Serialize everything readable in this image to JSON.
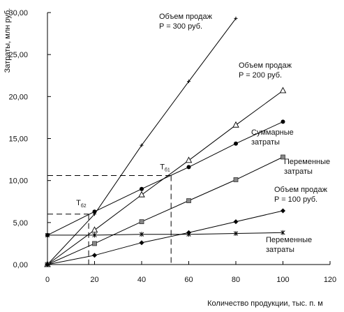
{
  "chart_data": {
    "type": "line",
    "xlabel": "Количество продукции, тыс. п. м",
    "ylabel": "Затраты, млн руб.",
    "xlim": [
      0,
      120
    ],
    "ylim": [
      0,
      30
    ],
    "xticks": [
      "0",
      "20",
      "40",
      "60",
      "80",
      "100",
      "120"
    ],
    "yticks": [
      "0,00",
      "5,00",
      "10,00",
      "15,00",
      "20,00",
      "25,00",
      "30,00"
    ],
    "grid": false,
    "series": [
      {
        "name": "Объем продаж P = 300 руб.",
        "marker": "plus",
        "x": [
          0,
          20,
          40,
          60,
          80
        ],
        "y": [
          0,
          6.0,
          14.2,
          21.8,
          29.3
        ]
      },
      {
        "name": "Объем продаж P = 200 руб.",
        "marker": "triangle",
        "x": [
          0,
          20,
          40,
          60,
          80,
          100
        ],
        "y": [
          0,
          4.1,
          8.3,
          12.4,
          16.6,
          20.7
        ]
      },
      {
        "name": "Суммарные затраты",
        "marker": "circle",
        "x": [
          0,
          20,
          40,
          60,
          80,
          100
        ],
        "y": [
          3.5,
          6.3,
          9.0,
          11.6,
          14.4,
          17.0
        ]
      },
      {
        "name": "Переменные затраты",
        "marker": "square",
        "x": [
          0,
          20,
          40,
          60,
          80,
          100
        ],
        "y": [
          0,
          2.5,
          5.1,
          7.6,
          10.1,
          12.8
        ]
      },
      {
        "name": "Объем продаж P = 100 руб.",
        "marker": "diamond",
        "x": [
          0,
          20,
          40,
          60,
          80,
          100
        ],
        "y": [
          0,
          1.1,
          2.6,
          3.8,
          5.1,
          6.4
        ]
      },
      {
        "name": "Переменные затраты",
        "marker": "star",
        "x": [
          0,
          20,
          40,
          60,
          80,
          100
        ],
        "y": [
          3.5,
          3.5,
          3.6,
          3.6,
          3.7,
          3.8
        ]
      }
    ],
    "reference_lines": [
      {
        "label": "Tб2",
        "x": 17.5,
        "y": 6.0
      },
      {
        "label": "Tб1",
        "x": 52.5,
        "y": 10.6
      }
    ],
    "annotations": {
      "p300": [
        "Объем продаж",
        "P = 300 руб."
      ],
      "p200": [
        "Объем продаж",
        "P = 200 руб."
      ],
      "total": [
        "Суммарные",
        "затраты"
      ],
      "variable": [
        "Переменные",
        "затраты"
      ],
      "p100": [
        "Объем продаж",
        "P = 100 руб."
      ],
      "fixed": [
        "Переменные",
        "затраты"
      ]
    }
  }
}
